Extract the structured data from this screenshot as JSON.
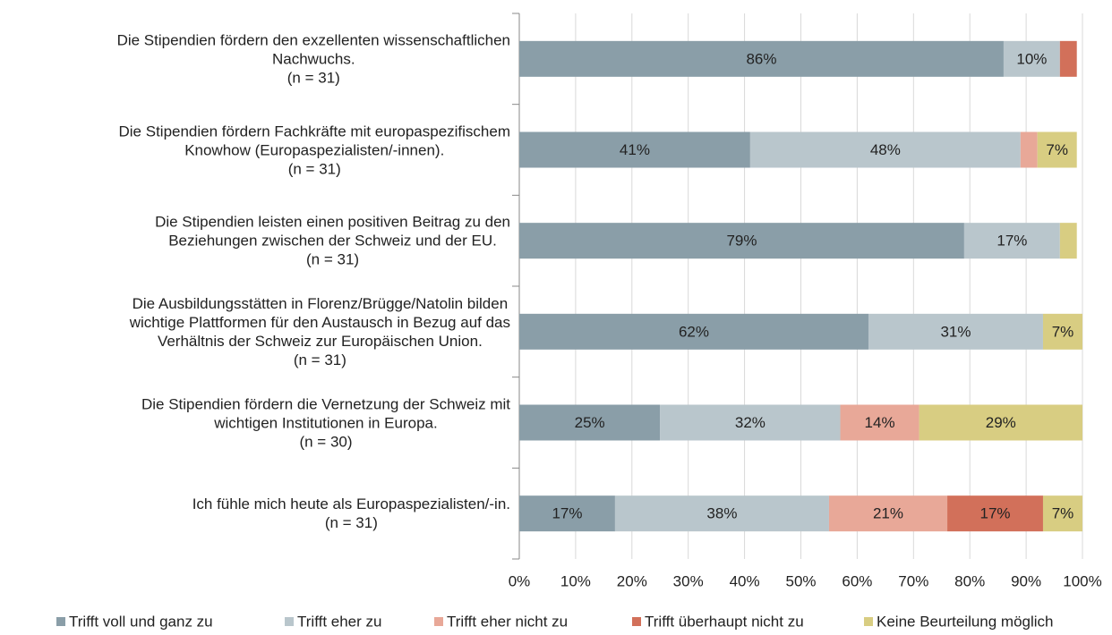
{
  "chart_data": {
    "type": "stacked_barh",
    "categories": [
      "Die Stipendien fördern den exzellenten wissenschaftlichen\nNachwuchs.\n(n = 31)",
      "Die Stipendien fördern Fachkräfte mit europaspezifischem\nKnowhow (Europaspezialisten/-innen).\n(n = 31)",
      "Die Stipendien leisten einen positiven Beitrag zu den\nBeziehungen zwischen der Schweiz und der EU.\n(n = 31)",
      "Die Ausbildungsstätten in Florenz/Brügge/Natolin bilden\nwichtige Plattformen für den Austausch in Bezug auf das\nVerhältnis der Schweiz zur Europäischen Union.\n(n = 31)",
      "Die Stipendien fördern die Vernetzung der Schweiz mit\nwichtigen Institutionen in Europa.\n(n = 30)",
      "Ich fühle mich heute als Europaspezialisten/-in.\n(n = 31)"
    ],
    "series": [
      {
        "name": "Trifft voll und ganz zu",
        "color": "#8a9ea8",
        "values": [
          86,
          41,
          79,
          62,
          25,
          17
        ],
        "value_labels": [
          "86%",
          "41%",
          "79%",
          "62%",
          "25%",
          "17%"
        ]
      },
      {
        "name": "Trifft eher zu",
        "color": "#b9c6cc",
        "values": [
          10,
          48,
          17,
          31,
          32,
          38
        ],
        "value_labels": [
          "10%",
          "48%",
          "17%",
          "31%",
          "32%",
          "38%"
        ]
      },
      {
        "name": "Trifft eher nicht zu",
        "color": "#e8a898",
        "values": [
          0,
          3,
          0,
          0,
          14,
          21
        ],
        "value_labels": [
          null,
          null,
          null,
          null,
          "14%",
          "21%"
        ]
      },
      {
        "name": "Trifft überhaupt nicht zu",
        "color": "#d2705a",
        "values": [
          3,
          0,
          0,
          0,
          0,
          17
        ],
        "value_labels": [
          null,
          null,
          null,
          null,
          null,
          "17%"
        ]
      },
      {
        "name": "Keine Beurteilung möglich",
        "color": "#d8cd82",
        "values": [
          0,
          7,
          3,
          7,
          29,
          7
        ],
        "value_labels": [
          null,
          "7%",
          null,
          "7%",
          "29%",
          "7%"
        ]
      }
    ],
    "xlim": [
      0,
      100
    ],
    "xticks": [
      {
        "value": 0,
        "label": "0%"
      },
      {
        "value": 10,
        "label": "10%"
      },
      {
        "value": 20,
        "label": "20%"
      },
      {
        "value": 30,
        "label": "30%"
      },
      {
        "value": 40,
        "label": "40%"
      },
      {
        "value": 50,
        "label": "50%"
      },
      {
        "value": 60,
        "label": "60%"
      },
      {
        "value": 70,
        "label": "70%"
      },
      {
        "value": 80,
        "label": "80%"
      },
      {
        "value": 90,
        "label": "90%"
      },
      {
        "value": 100,
        "label": "100%"
      }
    ],
    "grid": true,
    "legend": "bottom"
  }
}
